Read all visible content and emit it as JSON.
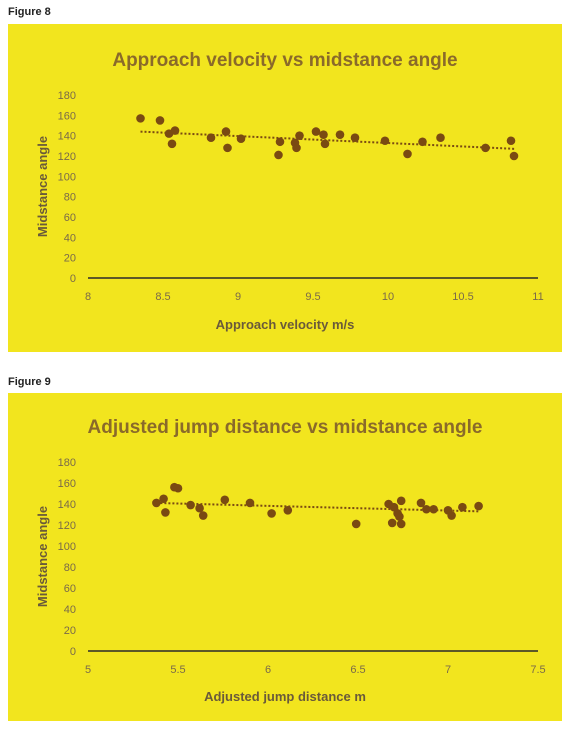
{
  "figures": [
    {
      "label": "Figure 8",
      "chart_data": {
        "type": "scatter",
        "title": "Approach velocity vs midstance angle",
        "xlabel": "Approach velocity m/s",
        "ylabel": "Midstance angle",
        "xlim": [
          8,
          11
        ],
        "ylim": [
          0,
          180
        ],
        "xticks": [
          "8",
          "8.5",
          "9",
          "9.5",
          "10",
          "10.5",
          "11"
        ],
        "yticks": [
          "0",
          "20",
          "40",
          "60",
          "80",
          "100",
          "120",
          "140",
          "160",
          "180"
        ],
        "grid": false,
        "legend": "none",
        "trendline": {
          "type": "linear",
          "from": [
            8.35,
            144
          ],
          "to": [
            10.85,
            127
          ]
        },
        "colors": {
          "background": "#f2e51e",
          "marker": "#7a4a12",
          "trend": "#7a4a12",
          "title": "#8a6a2a",
          "axis_text": "#7a6a4a"
        },
        "series": [
          {
            "points": [
              [
                8.35,
                157
              ],
              [
                8.48,
                155
              ],
              [
                8.54,
                142
              ],
              [
                8.56,
                132
              ],
              [
                8.58,
                145
              ],
              [
                8.82,
                138
              ],
              [
                8.92,
                144
              ],
              [
                8.93,
                128
              ],
              [
                9.02,
                137
              ],
              [
                9.27,
                121
              ],
              [
                9.28,
                134
              ],
              [
                9.38,
                133
              ],
              [
                9.39,
                128
              ],
              [
                9.41,
                140
              ],
              [
                9.52,
                144
              ],
              [
                9.57,
                141
              ],
              [
                9.58,
                132
              ],
              [
                9.68,
                141
              ],
              [
                9.78,
                138
              ],
              [
                9.98,
                135
              ],
              [
                10.13,
                122
              ],
              [
                10.23,
                134
              ],
              [
                10.35,
                138
              ],
              [
                10.65,
                128
              ],
              [
                10.82,
                135
              ],
              [
                10.84,
                120
              ]
            ]
          }
        ]
      }
    },
    {
      "label": "Figure 9",
      "chart_data": {
        "type": "scatter",
        "title": "Adjusted jump distance vs midstance angle",
        "xlabel": "Adjusted jump distance m",
        "ylabel": "Midstance angle",
        "xlim": [
          5,
          7.5
        ],
        "ylim": [
          0,
          180
        ],
        "xticks": [
          "5",
          "5.5",
          "6",
          "6.5",
          "7",
          "7.5"
        ],
        "yticks": [
          "0",
          "20",
          "40",
          "60",
          "80",
          "100",
          "120",
          "140",
          "160",
          "180"
        ],
        "grid": false,
        "legend": "none",
        "trendline": {
          "type": "linear",
          "from": [
            5.38,
            141
          ],
          "to": [
            7.17,
            133
          ]
        },
        "colors": {
          "background": "#f2e51e",
          "marker": "#7a4a12",
          "trend": "#7a4a12",
          "title": "#8a6a2a",
          "axis_text": "#7a6a4a"
        },
        "series": [
          {
            "points": [
              [
                5.38,
                141
              ],
              [
                5.42,
                145
              ],
              [
                5.43,
                132
              ],
              [
                5.48,
                156
              ],
              [
                5.5,
                155
              ],
              [
                5.57,
                139
              ],
              [
                5.62,
                136
              ],
              [
                5.64,
                129
              ],
              [
                5.76,
                144
              ],
              [
                5.9,
                141
              ],
              [
                6.02,
                131
              ],
              [
                6.11,
                134
              ],
              [
                6.49,
                121
              ],
              [
                6.67,
                140
              ],
              [
                6.69,
                122
              ],
              [
                6.7,
                137
              ],
              [
                6.72,
                131
              ],
              [
                6.73,
                128
              ],
              [
                6.74,
                143
              ],
              [
                6.74,
                121
              ],
              [
                6.85,
                141
              ],
              [
                6.88,
                135
              ],
              [
                6.92,
                135
              ],
              [
                7.0,
                134
              ],
              [
                7.02,
                129
              ],
              [
                7.08,
                137
              ],
              [
                7.17,
                138
              ]
            ]
          }
        ]
      }
    }
  ]
}
